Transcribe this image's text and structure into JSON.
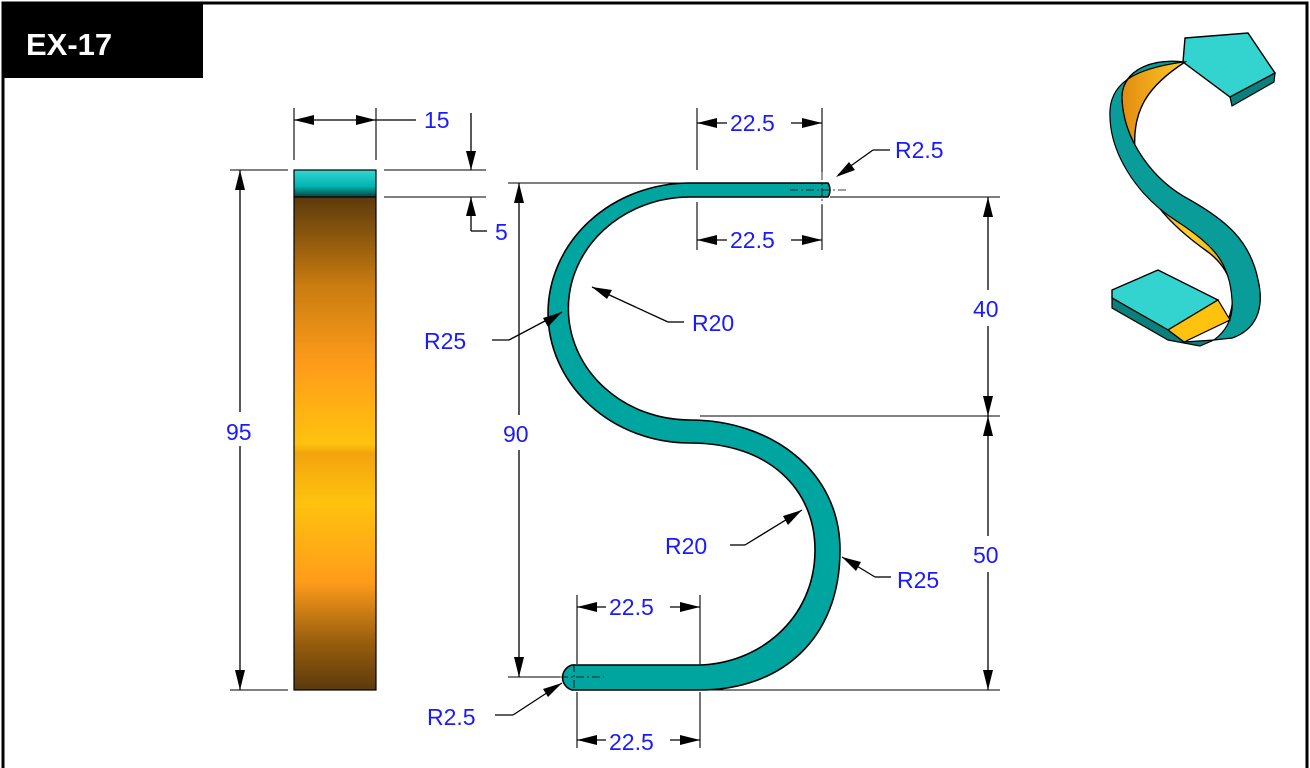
{
  "title": "EX-17",
  "colors": {
    "dimension_text": "#1a1aff",
    "part_teal": "#00a5a0",
    "part_teal_light": "#35d6d2",
    "part_gold": "#ffc20e",
    "part_brown": "#5c3a0c",
    "title_bg": "#000000"
  },
  "side_view": {
    "width_dim": "15",
    "tab_dim": "5",
    "height_dim": "95"
  },
  "front_view": {
    "top_upper_length": "22.5",
    "top_lower_length": "22.5",
    "top_tip_radius": "R2.5",
    "upper_inner_radius": "R20",
    "upper_outer_radius": "R25",
    "overall_height": "90",
    "upper_height": "40",
    "lower_height": "50",
    "lower_inner_radius": "R20",
    "lower_outer_radius": "R25",
    "bottom_upper_length": "22.5",
    "bottom_lower_length": "22.5",
    "bottom_tip_radius": "R2.5"
  },
  "isometric_view": {
    "icon": "s-clip-3d-model"
  }
}
